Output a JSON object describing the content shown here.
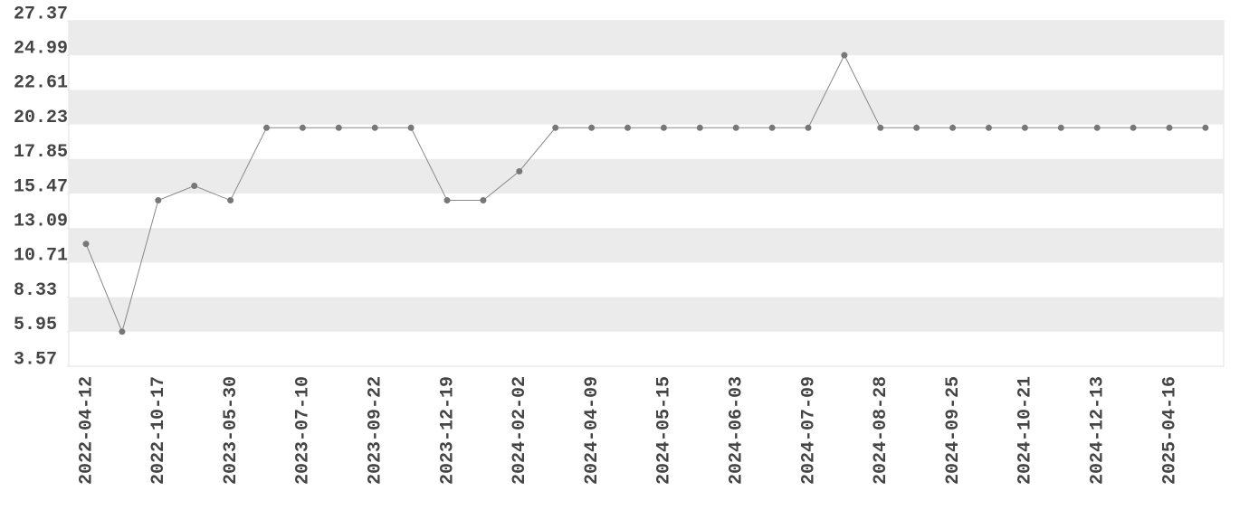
{
  "chart_data": {
    "type": "line",
    "categories": [
      "2022-04-12",
      null,
      "2022-10-17",
      null,
      "2023-05-30",
      null,
      "2023-07-10",
      null,
      "2023-09-22",
      null,
      "2023-12-19",
      null,
      "2024-02-02",
      null,
      "2024-04-09",
      null,
      "2024-05-15",
      null,
      "2024-06-03",
      null,
      "2024-07-09",
      null,
      "2024-08-28",
      null,
      "2024-09-25",
      null,
      "2024-10-21",
      null,
      "2024-12-13",
      null,
      "2025-04-16",
      null
    ],
    "series": [
      {
        "color": "#777777",
        "values": [
          12,
          5.95,
          15,
          16,
          15,
          20,
          20,
          20,
          20,
          20,
          15,
          15,
          17,
          20,
          20,
          20,
          20,
          20,
          20,
          20,
          20,
          25,
          20,
          20,
          20,
          20,
          20,
          20,
          20,
          20,
          20,
          20
        ]
      }
    ],
    "ylim": [
      3.57,
      27.37
    ],
    "yticks": [
      3.57,
      5.95,
      8.33,
      10.71,
      13.09,
      15.47,
      17.85,
      20.23,
      22.61,
      24.99,
      27.37
    ],
    "grid": "bands"
  }
}
